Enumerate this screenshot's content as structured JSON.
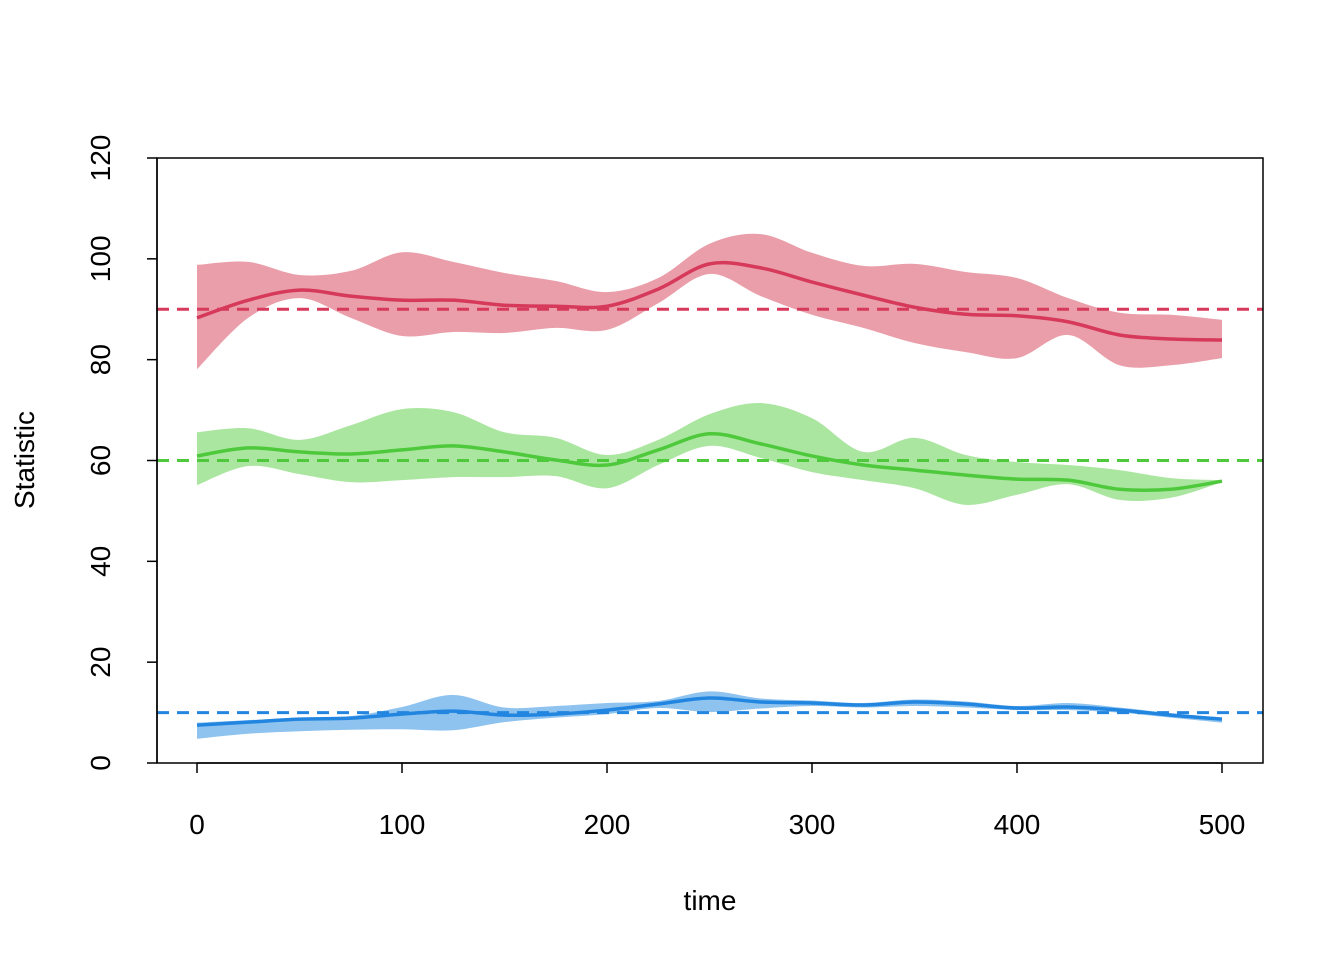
{
  "chart_data": {
    "type": "line",
    "title": "",
    "xlabel": "time",
    "ylabel": "Statistic",
    "xlim": [
      -19,
      520
    ],
    "ylim": [
      0,
      120
    ],
    "xticks": [
      0,
      100,
      200,
      300,
      400,
      500
    ],
    "yticks": [
      0,
      20,
      40,
      60,
      80,
      100,
      120
    ],
    "x": [
      0,
      25,
      50,
      75,
      100,
      125,
      150,
      175,
      200,
      225,
      250,
      275,
      300,
      325,
      350,
      375,
      400,
      425,
      450,
      475,
      500
    ],
    "series": [
      {
        "name": "red",
        "line_color": "#D6395A",
        "band_color": "#EA9EAA",
        "reference": 90,
        "values": [
          88.3,
          91.8,
          93.8,
          92.6,
          91.8,
          91.8,
          90.8,
          90.6,
          90.6,
          94.0,
          99.0,
          98.2,
          95.4,
          92.8,
          90.4,
          89.0,
          88.7,
          87.5,
          84.9,
          84.1,
          83.9
        ],
        "upper": [
          98.8,
          99.4,
          96.8,
          97.6,
          101.3,
          99.4,
          97.2,
          95.6,
          93.4,
          96.2,
          103.0,
          104.9,
          101.2,
          98.6,
          99.0,
          97.4,
          96.2,
          92.2,
          89.3,
          88.9,
          87.9
        ],
        "lower": [
          78.1,
          88.3,
          92.2,
          88.3,
          84.7,
          85.5,
          85.3,
          86.3,
          85.9,
          91.2,
          97.0,
          92.6,
          88.9,
          86.3,
          83.3,
          81.5,
          80.3,
          84.9,
          78.9,
          78.9,
          80.3
        ]
      },
      {
        "name": "green",
        "line_color": "#4EC93C",
        "band_color": "#ABE6A1",
        "reference": 60,
        "values": [
          60.9,
          62.5,
          61.7,
          61.3,
          62.1,
          62.9,
          61.7,
          60.1,
          59.1,
          62.1,
          65.3,
          63.3,
          60.9,
          59.1,
          58.1,
          57.1,
          56.3,
          56.1,
          54.3,
          54.3,
          55.9
        ],
        "upper": [
          65.6,
          66.4,
          64.1,
          67.0,
          70.2,
          69.6,
          65.6,
          64.5,
          61.1,
          64.1,
          69.2,
          71.4,
          68.4,
          61.7,
          64.5,
          61.1,
          59.7,
          59.1,
          58.1,
          56.5,
          56.1
        ],
        "lower": [
          55.1,
          58.9,
          57.3,
          55.7,
          56.1,
          56.7,
          56.7,
          56.9,
          54.5,
          59.1,
          62.9,
          60.5,
          57.7,
          56.1,
          54.5,
          51.2,
          53.2,
          55.3,
          52.2,
          52.6,
          55.7
        ]
      },
      {
        "name": "blue",
        "line_color": "#2286E0",
        "band_color": "#8FC3EF",
        "reference": 10,
        "values": [
          7.5,
          8.1,
          8.7,
          8.9,
          9.7,
          10.3,
          9.5,
          9.7,
          10.5,
          11.7,
          12.9,
          12.1,
          11.9,
          11.5,
          12.1,
          11.7,
          10.9,
          11.1,
          10.5,
          9.5,
          8.7
        ],
        "upper": [
          8.0,
          8.5,
          9.0,
          9.3,
          11.1,
          13.5,
          11.0,
          11.3,
          11.9,
          12.3,
          14.2,
          12.8,
          12.4,
          11.9,
          12.6,
          12.2,
          11.3,
          11.9,
          11.0,
          9.9,
          9.0
        ],
        "lower": [
          4.8,
          5.8,
          6.3,
          6.6,
          6.7,
          6.5,
          8.1,
          9.0,
          9.7,
          10.9,
          10.1,
          10.8,
          11.3,
          11.0,
          11.3,
          11.0,
          10.5,
          10.5,
          10.0,
          9.0,
          8.0
        ]
      }
    ]
  }
}
